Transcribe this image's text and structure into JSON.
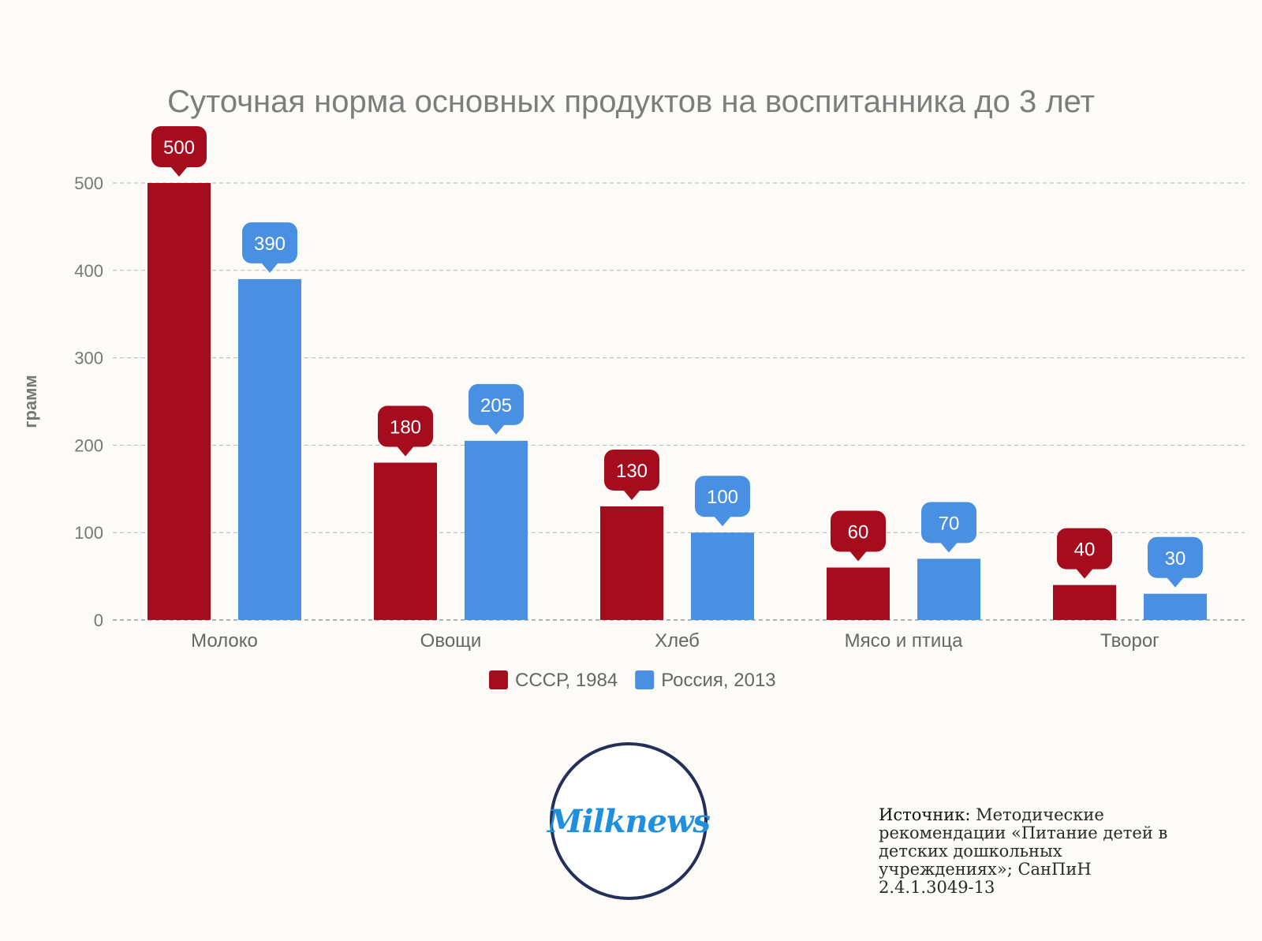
{
  "chart_data": {
    "type": "bar",
    "title": "Суточная норма основных продуктов на воспитанника до 3 лет",
    "xlabel": "",
    "ylabel": "грамм",
    "ylim": [
      0,
      500
    ],
    "yticks": [
      0,
      100,
      200,
      300,
      400,
      500
    ],
    "categories": [
      "Молоко",
      "Овощи",
      "Хлеб",
      "Мясо и птица",
      "Творог"
    ],
    "series": [
      {
        "name": "СССР, 1984",
        "color": "#a50c1e",
        "values": [
          500,
          180,
          130,
          60,
          40
        ]
      },
      {
        "name": "Россия, 2013",
        "color": "#4a90e2",
        "values": [
          390,
          205,
          100,
          70,
          30
        ]
      }
    ],
    "grid": true,
    "legend_position": "bottom-center"
  },
  "logo": {
    "text": "Milknews"
  },
  "source": {
    "label": "Источник:",
    "text": "Методические рекомендации «Питание детей в детских дошкольных учреждениях»; СанПиН 2.4.1.3049-13"
  }
}
